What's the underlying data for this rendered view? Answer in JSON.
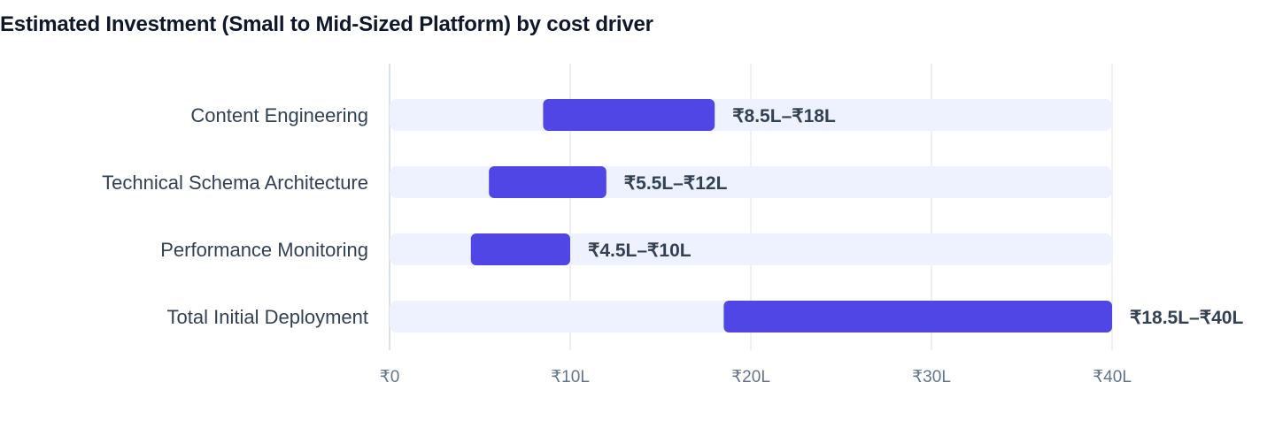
{
  "chart_data": {
    "type": "bar",
    "orientation": "horizontal",
    "title": "Estimated Investment (Small to Mid-Sized Platform) by cost driver",
    "categories": [
      "Content Engineering",
      "Technical Schema Architecture",
      "Performance Monitoring",
      "Total Initial Deployment"
    ],
    "ranges": [
      {
        "low": 8.5,
        "high": 18
      },
      {
        "low": 5.5,
        "high": 12
      },
      {
        "low": 4.5,
        "high": 10
      },
      {
        "low": 18.5,
        "high": 40
      }
    ],
    "value_labels": [
      "₹8.5L–₹18L",
      "₹5.5L–₹12L",
      "₹4.5L–₹10L",
      "₹18.5L–₹40L"
    ],
    "x_ticks": [
      0,
      10,
      20,
      30,
      40
    ],
    "x_tick_labels": [
      "₹0",
      "₹10L",
      "₹20L",
      "₹30L",
      "₹40L"
    ],
    "xlim": [
      0,
      40
    ],
    "xlabel": "",
    "ylabel": "",
    "grid": true,
    "legend": "none",
    "colors": {
      "bar": "#4f46e5",
      "track": "#eef2ff",
      "grid": "#e5e7eb",
      "text": "#334155",
      "tick": "#64748b",
      "title": "#0f172a"
    }
  }
}
